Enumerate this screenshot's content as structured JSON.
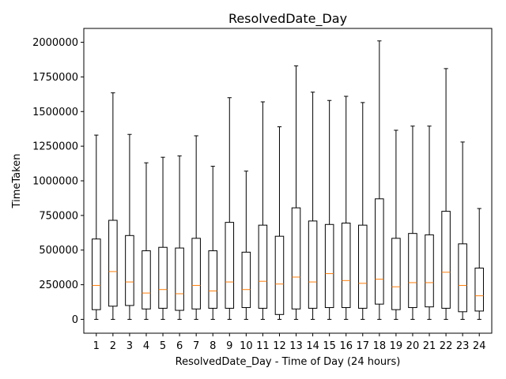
{
  "chart_data": {
    "type": "box",
    "title": "ResolvedDate_Day",
    "xlabel": "ResolvedDate_Day - Time of Day (24 hours)",
    "ylabel": "TimeTaken",
    "ylim": [
      -100000,
      2100000
    ],
    "yticks": [
      0,
      250000,
      500000,
      750000,
      1000000,
      1250000,
      1500000,
      1750000,
      2000000
    ],
    "ytick_labels": [
      "0",
      "250000",
      "500000",
      "750000",
      "1000000",
      "1250000",
      "1500000",
      "1750000",
      "2000000"
    ],
    "categories": [
      "1",
      "2",
      "3",
      "4",
      "5",
      "6",
      "7",
      "8",
      "9",
      "10",
      "11",
      "12",
      "13",
      "14",
      "15",
      "16",
      "17",
      "18",
      "19",
      "20",
      "21",
      "22",
      "23",
      "24"
    ],
    "boxes": [
      {
        "min": 0,
        "q1": 70000,
        "median": 245000,
        "q3": 580000,
        "max": 1330000
      },
      {
        "min": 0,
        "q1": 95000,
        "median": 345000,
        "q3": 715000,
        "max": 1635000
      },
      {
        "min": 0,
        "q1": 100000,
        "median": 270000,
        "q3": 605000,
        "max": 1335000
      },
      {
        "min": 0,
        "q1": 75000,
        "median": 190000,
        "q3": 495000,
        "max": 1130000
      },
      {
        "min": 0,
        "q1": 80000,
        "median": 215000,
        "q3": 520000,
        "max": 1170000
      },
      {
        "min": 0,
        "q1": 65000,
        "median": 185000,
        "q3": 515000,
        "max": 1180000
      },
      {
        "min": 0,
        "q1": 75000,
        "median": 245000,
        "q3": 585000,
        "max": 1325000
      },
      {
        "min": 0,
        "q1": 80000,
        "median": 205000,
        "q3": 495000,
        "max": 1105000
      },
      {
        "min": 0,
        "q1": 80000,
        "median": 270000,
        "q3": 700000,
        "max": 1600000
      },
      {
        "min": 0,
        "q1": 85000,
        "median": 215000,
        "q3": 485000,
        "max": 1070000
      },
      {
        "min": 0,
        "q1": 80000,
        "median": 275000,
        "q3": 680000,
        "max": 1570000
      },
      {
        "min": 0,
        "q1": 35000,
        "median": 255000,
        "q3": 600000,
        "max": 1390000
      },
      {
        "min": 0,
        "q1": 75000,
        "median": 305000,
        "q3": 805000,
        "max": 1830000
      },
      {
        "min": 0,
        "q1": 80000,
        "median": 270000,
        "q3": 710000,
        "max": 1640000
      },
      {
        "min": 0,
        "q1": 85000,
        "median": 330000,
        "q3": 685000,
        "max": 1580000
      },
      {
        "min": 0,
        "q1": 85000,
        "median": 280000,
        "q3": 695000,
        "max": 1610000
      },
      {
        "min": 0,
        "q1": 80000,
        "median": 260000,
        "q3": 680000,
        "max": 1565000
      },
      {
        "min": 0,
        "q1": 110000,
        "median": 290000,
        "q3": 870000,
        "max": 2010000
      },
      {
        "min": 0,
        "q1": 70000,
        "median": 235000,
        "q3": 585000,
        "max": 1365000
      },
      {
        "min": 0,
        "q1": 85000,
        "median": 265000,
        "q3": 620000,
        "max": 1395000
      },
      {
        "min": 0,
        "q1": 90000,
        "median": 265000,
        "q3": 610000,
        "max": 1395000
      },
      {
        "min": 0,
        "q1": 80000,
        "median": 340000,
        "q3": 780000,
        "max": 1810000
      },
      {
        "min": 0,
        "q1": 55000,
        "median": 245000,
        "q3": 545000,
        "max": 1280000
      },
      {
        "min": 0,
        "q1": 60000,
        "median": 170000,
        "q3": 370000,
        "max": 800000
      }
    ],
    "colors": {
      "box": "#000000",
      "median": "#ff7f0e"
    },
    "grid": false,
    "legend": "none"
  }
}
